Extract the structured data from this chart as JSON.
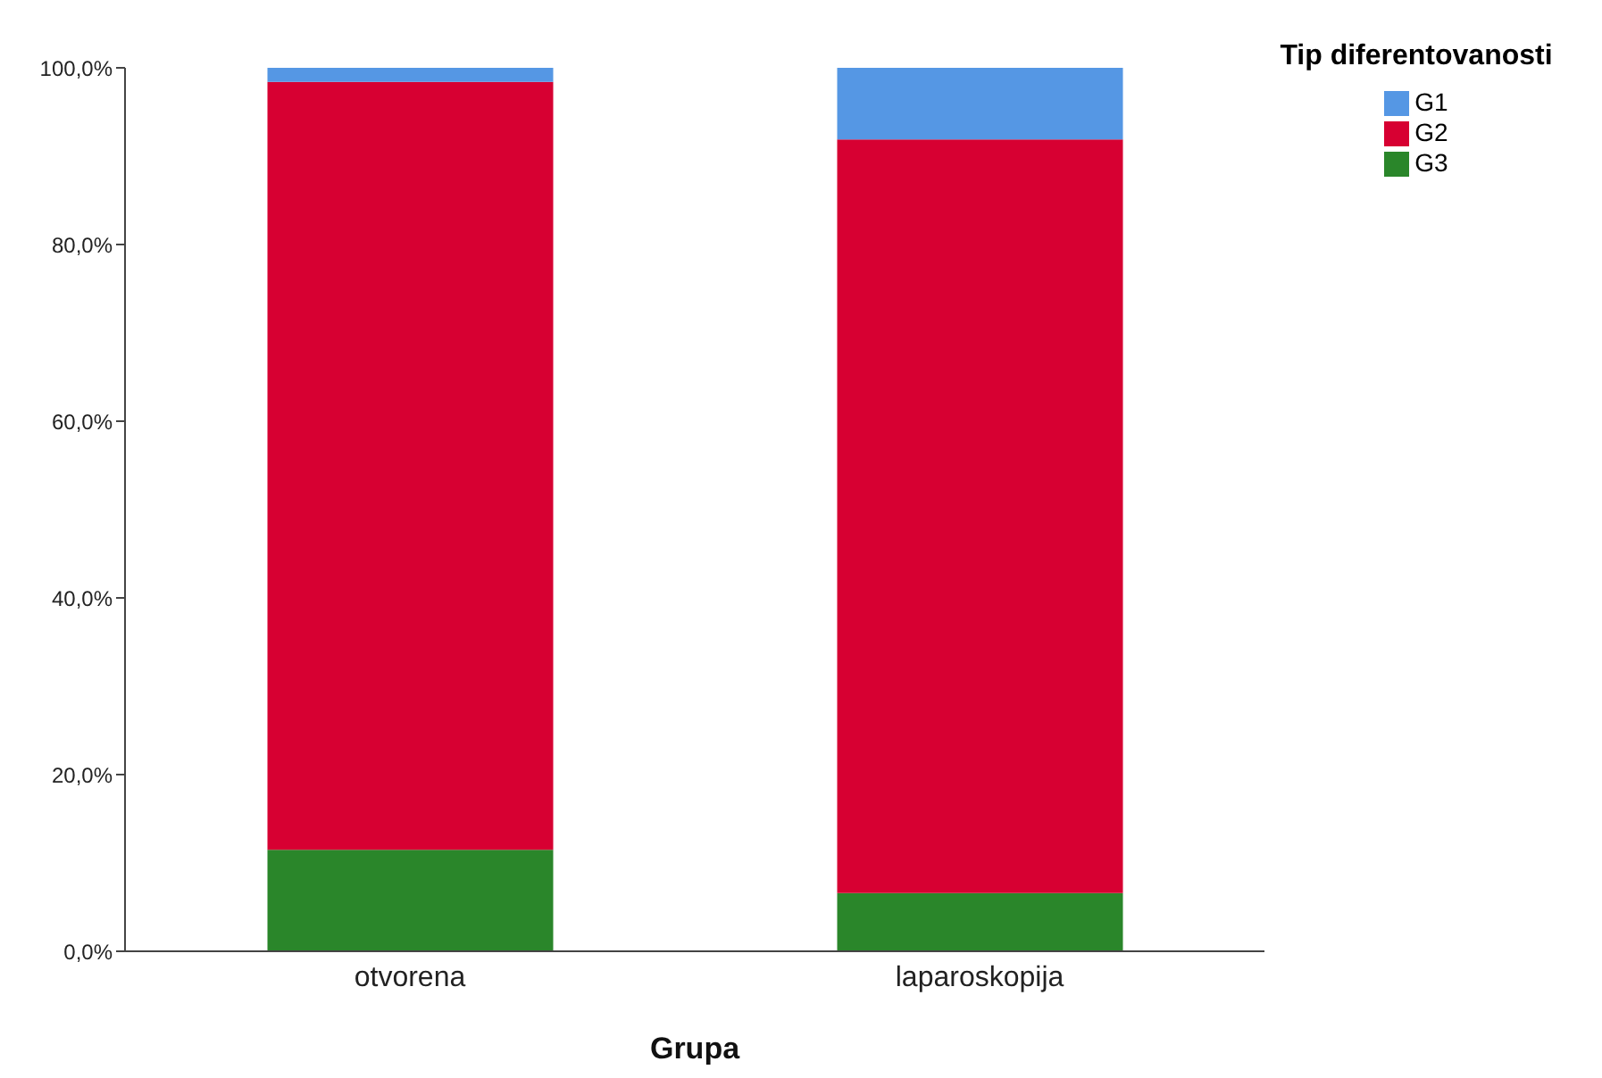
{
  "chart_data": {
    "type": "bar",
    "stacked": true,
    "xlabel": "Grupa",
    "legend_title": "Tip diferentovanosti",
    "legend": "top right",
    "categories": [
      "otvorena",
      "laparoskopija"
    ],
    "series": [
      {
        "name": "G3",
        "color": "#2a862a",
        "values": [
          11.5,
          6.6
        ]
      },
      {
        "name": "G2",
        "color": "#d70032",
        "values": [
          86.9,
          85.3
        ]
      },
      {
        "name": "G1",
        "color": "#5597e4",
        "values": [
          1.6,
          8.1
        ]
      }
    ],
    "ylim": [
      0,
      100
    ],
    "yticks": [
      {
        "value": 0,
        "label": "0,0%"
      },
      {
        "value": 20,
        "label": "20,0%"
      },
      {
        "value": 40,
        "label": "40,0%"
      },
      {
        "value": 60,
        "label": "60,0%"
      },
      {
        "value": 80,
        "label": "80,0%"
      },
      {
        "value": 100,
        "label": "100,0%"
      }
    ],
    "grid": false
  }
}
